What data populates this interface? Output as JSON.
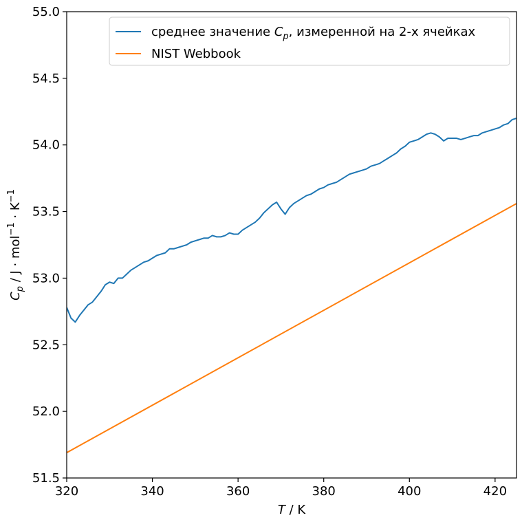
{
  "chart_data": {
    "type": "line",
    "title": "",
    "xlabel": {
      "symbol": "T",
      "unit": " / K"
    },
    "ylabel": {
      "symbol": "C",
      "subscript": "p",
      "unit": " / J · mol",
      "sup1": "−1",
      "unit2": " · K",
      "sup2": "−1"
    },
    "xlim": [
      320,
      425
    ],
    "ylim": [
      51.5,
      55.0
    ],
    "xticks": [
      320,
      340,
      360,
      380,
      400,
      420
    ],
    "yticks": [
      51.5,
      52.0,
      52.5,
      53.0,
      53.5,
      54.0,
      54.5,
      55.0
    ],
    "xtick_labels": [
      "320",
      "340",
      "360",
      "380",
      "400",
      "420"
    ],
    "ytick_labels": [
      "51.5",
      "52.0",
      "52.5",
      "53.0",
      "53.5",
      "54.0",
      "54.5",
      "55.0"
    ],
    "grid": false,
    "legend_position": "top-right",
    "series": [
      {
        "label_prefix": "среднее значение ",
        "label_symbol": "C",
        "label_sub": "p",
        "label_suffix": ", измеренной на 2-х ячейках",
        "color": "#1f77b4",
        "x": [
          320,
          321,
          322,
          323,
          324,
          325,
          326,
          327,
          328,
          329,
          330,
          331,
          332,
          333,
          334,
          335,
          336,
          337,
          338,
          339,
          340,
          341,
          342,
          343,
          344,
          345,
          346,
          347,
          348,
          349,
          350,
          351,
          352,
          353,
          354,
          355,
          356,
          357,
          358,
          359,
          360,
          361,
          362,
          363,
          364,
          365,
          366,
          367,
          368,
          369,
          370,
          371,
          372,
          373,
          374,
          375,
          376,
          377,
          378,
          379,
          380,
          381,
          382,
          383,
          384,
          385,
          386,
          387,
          388,
          389,
          390,
          391,
          392,
          393,
          394,
          395,
          396,
          397,
          398,
          399,
          400,
          401,
          402,
          403,
          404,
          405,
          406,
          407,
          408,
          409,
          410,
          411,
          412,
          413,
          414,
          415,
          416,
          417,
          418,
          419,
          420,
          421,
          422,
          423,
          424,
          425
        ],
        "y": [
          52.78,
          52.7,
          52.67,
          52.72,
          52.76,
          52.8,
          52.82,
          52.86,
          52.9,
          52.95,
          52.97,
          52.96,
          53.0,
          53.0,
          53.03,
          53.06,
          53.08,
          53.1,
          53.12,
          53.13,
          53.15,
          53.17,
          53.18,
          53.19,
          53.22,
          53.22,
          53.23,
          53.24,
          53.25,
          53.27,
          53.28,
          53.29,
          53.3,
          53.3,
          53.32,
          53.31,
          53.31,
          53.32,
          53.34,
          53.33,
          53.33,
          53.36,
          53.38,
          53.4,
          53.42,
          53.45,
          53.49,
          53.52,
          53.55,
          53.57,
          53.52,
          53.48,
          53.53,
          53.56,
          53.58,
          53.6,
          53.62,
          53.63,
          53.65,
          53.67,
          53.68,
          53.7,
          53.71,
          53.72,
          53.74,
          53.76,
          53.78,
          53.79,
          53.8,
          53.81,
          53.82,
          53.84,
          53.85,
          53.86,
          53.88,
          53.9,
          53.92,
          53.94,
          53.97,
          53.99,
          54.02,
          54.03,
          54.04,
          54.06,
          54.08,
          54.09,
          54.08,
          54.06,
          54.03,
          54.05,
          54.05,
          54.05,
          54.04,
          54.05,
          54.06,
          54.07,
          54.07,
          54.09,
          54.1,
          54.11,
          54.12,
          54.13,
          54.15,
          54.16,
          54.19,
          54.2
        ]
      },
      {
        "label": "NIST Webbook",
        "color": "#ff7f0e",
        "x": [
          320,
          425
        ],
        "y": [
          51.69,
          53.56
        ]
      }
    ]
  }
}
